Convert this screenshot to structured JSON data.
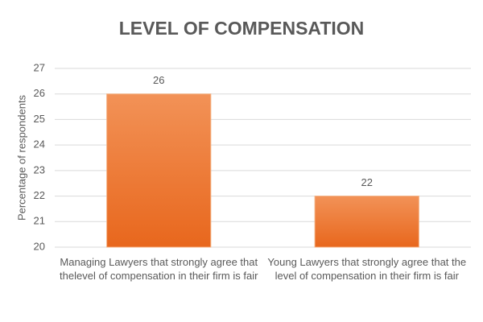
{
  "chart_data": {
    "type": "bar",
    "title": "LEVEL OF COMPENSATION",
    "y_label": "Percentage of respondents",
    "categories": [
      "Managing Lawyers that strongly agree that thelevel of compensation in their firm is fair",
      "Young Lawyers that strongly agree that the level of compensation in their firm is fair"
    ],
    "values": [
      26,
      22
    ],
    "color": "#ed7d31",
    "ylim": [
      20,
      27
    ],
    "yticks": [
      20,
      21,
      22,
      23,
      24,
      25,
      26,
      27
    ],
    "grid": true
  }
}
